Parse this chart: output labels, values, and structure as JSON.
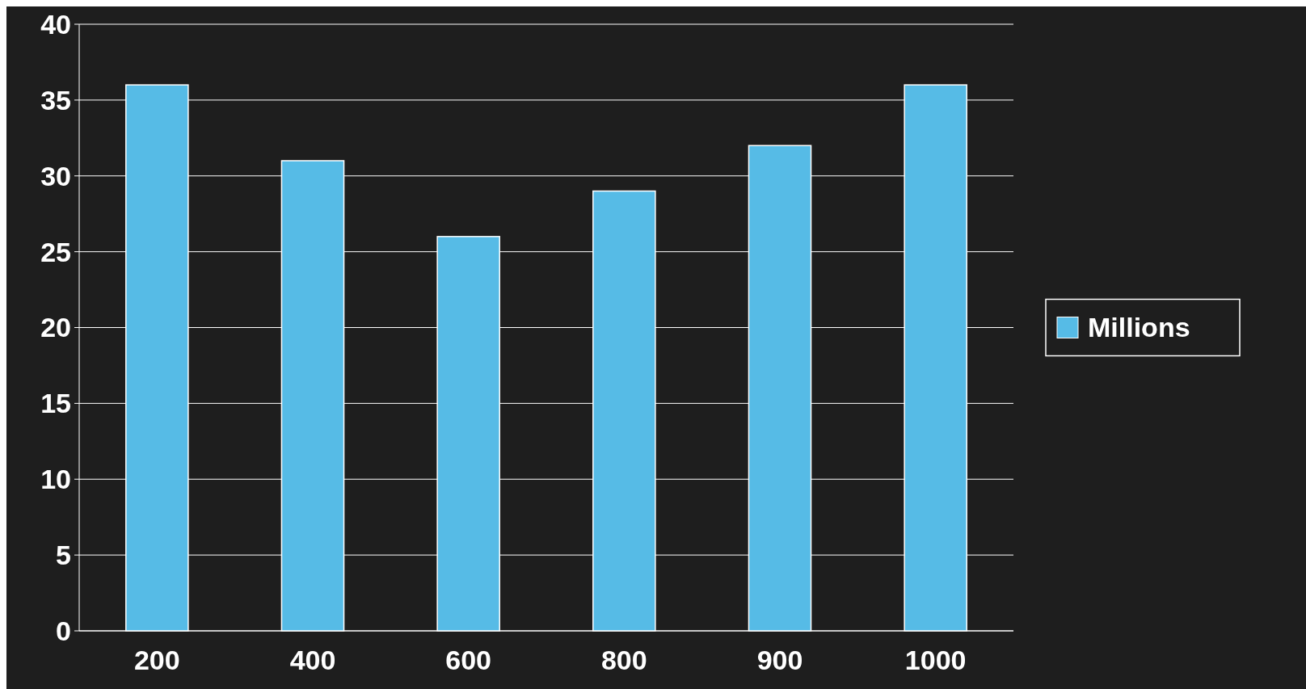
{
  "chart_data": {
    "type": "bar",
    "categories": [
      "200",
      "400",
      "600",
      "800",
      "900",
      "1000"
    ],
    "series": [
      {
        "name": "Millions",
        "color": "#56bbe6",
        "values": [
          36,
          31,
          26,
          29,
          32,
          36
        ]
      }
    ],
    "ylim": [
      0,
      40
    ],
    "yticks": [
      0,
      5,
      10,
      15,
      20,
      25,
      30,
      35,
      40
    ],
    "grid": "y",
    "legend": "right"
  }
}
